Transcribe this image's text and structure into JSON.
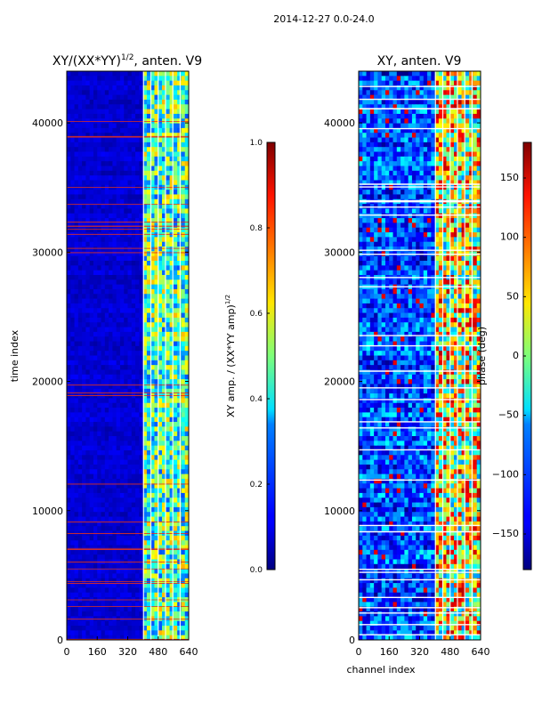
{
  "suptitle": "2014-12-27 0.0-24.0",
  "chart_data": [
    {
      "type": "heatmap",
      "title": "XY/(XX*YY)^1/2, anten. V9",
      "title_main": "XY/(XX*YY)",
      "title_sup": "1/2",
      "title_rest": ", anten. V9",
      "xlabel": "",
      "ylabel": "time index",
      "xlim": [
        0,
        640
      ],
      "ylim": [
        0,
        44000
      ],
      "xticks": [
        0,
        160,
        320,
        480,
        640
      ],
      "yticks": [
        0,
        10000,
        20000,
        30000,
        40000
      ],
      "colormap": "jet",
      "colorbar": {
        "label": "XY amp. / (XX*YY amp)^1/2",
        "label_main": "XY amp. / (XX*YY amp)",
        "label_sup": "1/2",
        "range": [
          0.0,
          1.0
        ],
        "ticks": [
          "0.0",
          "0.2",
          "0.4",
          "0.6",
          "0.8",
          "1.0"
        ]
      },
      "description_regions": [
        {
          "x_range": [
            0,
            400
          ],
          "level": 0.08
        },
        {
          "x_range": [
            400,
            640
          ],
          "level": 0.45
        }
      ]
    },
    {
      "type": "heatmap",
      "title": "XY, anten. V9",
      "xlabel": "channel index",
      "ylabel": "",
      "xlim": [
        0,
        640
      ],
      "ylim": [
        0,
        44000
      ],
      "xticks": [
        0,
        160,
        320,
        480,
        640
      ],
      "yticks": [
        0,
        10000,
        20000,
        30000,
        40000
      ],
      "colormap": "jet",
      "colorbar": {
        "label": "phase (deg)",
        "range": [
          -180,
          180
        ],
        "ticks": [
          "-150",
          "-100",
          "-50",
          "0",
          "50",
          "100",
          "150"
        ]
      },
      "description_regions": [
        {
          "x_range": [
            0,
            400
          ],
          "level": 0.2
        },
        {
          "x_range": [
            400,
            640
          ],
          "level": 0.6
        }
      ]
    }
  ]
}
